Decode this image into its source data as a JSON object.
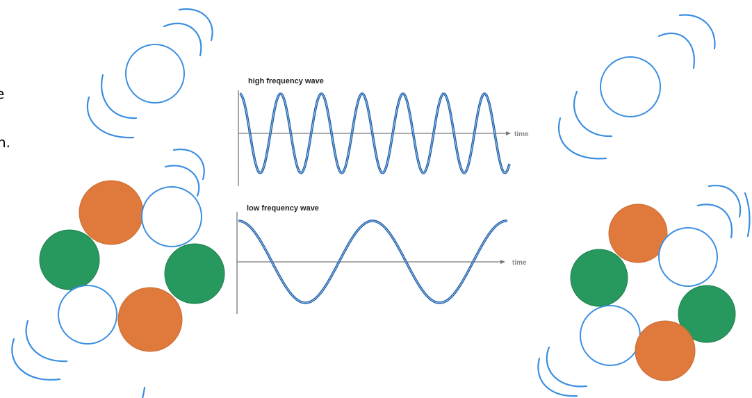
{
  "edge_text": [
    "e",
    "n."
  ],
  "high_wave": {
    "title": "high frequency wave",
    "axis_label": "time"
  },
  "low_wave": {
    "title": "low frequency wave",
    "axis_label": "time"
  }
}
